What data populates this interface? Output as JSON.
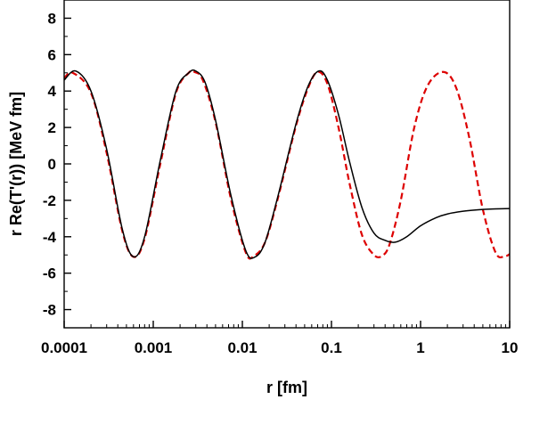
{
  "chart_data": {
    "type": "line",
    "title": "",
    "xlabel": "r [fm]",
    "ylabel": "r Re(T'(r)) [MeV fm]",
    "x_scale": "log",
    "xlim": [
      0.0001,
      10
    ],
    "ylim": [
      -9,
      9
    ],
    "x_ticks": [
      {
        "value": 0.0001,
        "label": "0.0001"
      },
      {
        "value": 0.001,
        "label": "0.001"
      },
      {
        "value": 0.01,
        "label": "0.01"
      },
      {
        "value": 0.1,
        "label": "0.1"
      },
      {
        "value": 1,
        "label": "1"
      },
      {
        "value": 10,
        "label": "10"
      }
    ],
    "y_ticks": [
      {
        "value": -8,
        "label": "-8"
      },
      {
        "value": -6,
        "label": "-6"
      },
      {
        "value": -4,
        "label": "-4"
      },
      {
        "value": -2,
        "label": "-2"
      },
      {
        "value": 0,
        "label": "0"
      },
      {
        "value": 2,
        "label": "2"
      },
      {
        "value": 4,
        "label": "4"
      },
      {
        "value": 6,
        "label": "6"
      },
      {
        "value": 8,
        "label": "8"
      }
    ],
    "grid": false,
    "legend": "none",
    "series": [
      {
        "style": "solid",
        "color": "#000000",
        "x": [
          0.0001,
          0.000135,
          0.0002,
          0.0003,
          0.00045,
          0.0006,
          0.0008,
          0.0012,
          0.0018,
          0.0025,
          0.003,
          0.0038,
          0.005,
          0.0075,
          0.011,
          0.014,
          0.018,
          0.025,
          0.04,
          0.055,
          0.072,
          0.09,
          0.12,
          0.16,
          0.22,
          0.3,
          0.4,
          0.52,
          0.7,
          1,
          1.5,
          2,
          3,
          5,
          7,
          10
        ],
        "y": [
          4.6,
          5.1,
          4.0,
          0.8,
          -3.6,
          -5.1,
          -4.0,
          0.2,
          4.0,
          5.0,
          5.1,
          4.5,
          2.4,
          -1.8,
          -4.8,
          -5.1,
          -4.3,
          -1.8,
          2.2,
          4.3,
          5.1,
          4.6,
          2.7,
          0.1,
          -2.4,
          -3.8,
          -4.2,
          -4.3,
          -4.0,
          -3.4,
          -2.95,
          -2.75,
          -2.6,
          -2.5,
          -2.47,
          -2.45
        ]
      },
      {
        "style": "dashed",
        "color": "#dd0000",
        "x": [
          0.0001,
          0.000125,
          0.0002,
          0.0003,
          0.00045,
          0.0006,
          0.0008,
          0.0012,
          0.0018,
          0.0025,
          0.0029,
          0.0036,
          0.005,
          0.0075,
          0.011,
          0.0135,
          0.018,
          0.025,
          0.04,
          0.055,
          0.07,
          0.09,
          0.12,
          0.16,
          0.22,
          0.3,
          0.37,
          0.45,
          0.6,
          0.85,
          1.2,
          1.8,
          2.5,
          3.5,
          5,
          7,
          9,
          10
        ],
        "y": [
          4.7,
          5.0,
          3.9,
          0.6,
          -3.7,
          -5.1,
          -4.1,
          0.0,
          3.9,
          5.0,
          5.05,
          4.6,
          2.3,
          -2.0,
          -4.9,
          -5.05,
          -4.3,
          -1.9,
          2.1,
          4.2,
          5.05,
          4.4,
          2.0,
          -1.1,
          -3.9,
          -5.0,
          -5.05,
          -4.4,
          -2.0,
          2.0,
          4.3,
          5.05,
          4.2,
          1.5,
          -2.5,
          -4.9,
          -5.05,
          -4.95
        ]
      }
    ]
  }
}
